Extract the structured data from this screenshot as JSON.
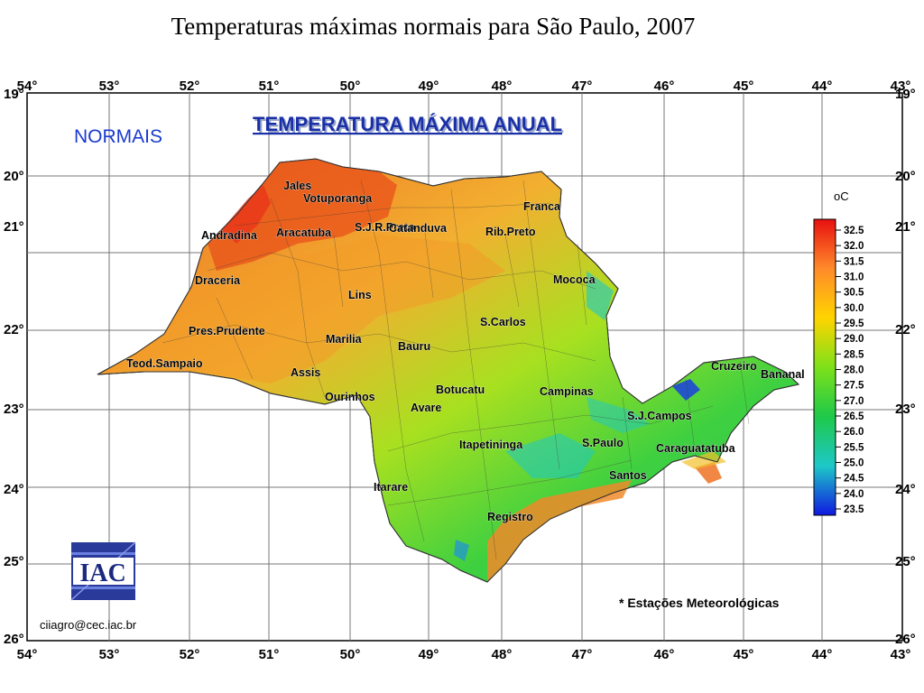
{
  "slide_title": "Temperaturas máximas normais para São Paulo, 2007",
  "map": {
    "normais_label": "NORMAIS",
    "heading": "TEMPERATURA MÁXIMA ANUAL",
    "longitude_labels": [
      "54°",
      "53°",
      "52°",
      "51°",
      "50°",
      "49°",
      "48°",
      "47°",
      "46°",
      "45°",
      "44°",
      "43°"
    ],
    "latitude_labels": [
      "19°",
      "20°",
      "21°",
      "22°",
      "23°",
      "24°",
      "25°",
      "26°"
    ],
    "cities": [
      "Jales",
      "Votuporanga",
      "S.J.R.Preto",
      "Franca",
      "Andradina",
      "Aracatuba",
      "Catanduva",
      "Rib.Preto",
      "Mococa",
      "Draceria",
      "Lins",
      "S.Carlos",
      "Pres.Prudente",
      "Marilia",
      "Bauru",
      "Teod.Sampaio",
      "Assis",
      "Ourinhos",
      "Botucatu",
      "Campinas",
      "Avare",
      "Cruzeiro",
      "Bananal",
      "S.J.Campos",
      "Itapetininga",
      "S.Paulo",
      "Caraguatatuba",
      "Santos",
      "Itarare",
      "Registro"
    ],
    "stations_note": "* Estações Meteorológicas",
    "credit_email": "ciiagro@cec.iac.br",
    "logo_text": "IAC"
  },
  "legend": {
    "unit": "oC",
    "values": [
      "32.5",
      "32.0",
      "31.5",
      "31.0",
      "30.5",
      "30.0",
      "29.5",
      "29.0",
      "28.5",
      "28.0",
      "27.5",
      "27.0",
      "26.5",
      "26.0",
      "25.5",
      "25.0",
      "24.5",
      "24.0",
      "23.5"
    ],
    "colors": [
      "#e81010",
      "#ff8a2a",
      "#ffd400",
      "#7ee11a",
      "#1ec94a",
      "#1ec8c8",
      "#1018e0"
    ]
  }
}
